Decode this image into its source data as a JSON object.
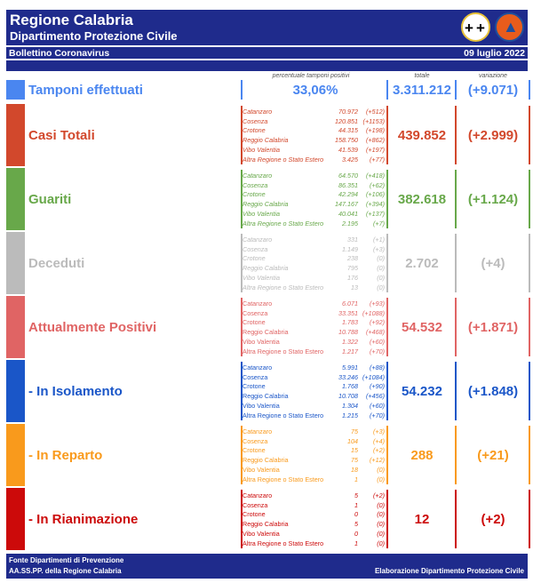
{
  "header": {
    "title": "Regione Calabria",
    "subtitle": "Dipartimento Protezione Civile",
    "bulletin": "Bollettino Coronavirus",
    "date": "09 luglio 2022"
  },
  "columns": {
    "perc": "percentuale tamponi positivi",
    "totale": "totale",
    "variazione": "variazione"
  },
  "tamponi": {
    "label": "Tamponi effettuati",
    "perc": "33,06%",
    "totale": "3.311.212",
    "variazione": "(+9.071)",
    "color": "#4a86f0"
  },
  "sections": [
    {
      "label": "Casi Totali",
      "color": "#d2482c",
      "italic": true,
      "totale": "439.852",
      "variazione": "(+2.999)",
      "rows": [
        [
          "Catanzaro",
          "70.972",
          "(+512)"
        ],
        [
          "Cosenza",
          "120.851",
          "(+1153)"
        ],
        [
          "Crotone",
          "44.315",
          "(+198)"
        ],
        [
          "Reggio Calabria",
          "158.750",
          "(+862)"
        ],
        [
          "Vibo Valentia",
          "41.539",
          "(+197)"
        ],
        [
          "Altra Regione o Stato Estero",
          "3.425",
          "(+77)"
        ]
      ]
    },
    {
      "label": "Guariti",
      "color": "#68a84a",
      "italic": true,
      "totale": "382.618",
      "variazione": "(+1.124)",
      "rows": [
        [
          "Catanzaro",
          "64.570",
          "(+418)"
        ],
        [
          "Cosenza",
          "86.351",
          "(+62)"
        ],
        [
          "Crotone",
          "42.294",
          "(+106)"
        ],
        [
          "Reggio Calabria",
          "147.167",
          "(+394)"
        ],
        [
          "Vibo Valentia",
          "40.041",
          "(+137)"
        ],
        [
          "Altra Regione o Stato Estero",
          "2.195",
          "(+7)"
        ]
      ]
    },
    {
      "label": "Deceduti",
      "color": "#bbbbbb",
      "italic": true,
      "totale": "2.702",
      "variazione": "(+4)",
      "rows": [
        [
          "Catanzaro",
          "331",
          "(+1)"
        ],
        [
          "Cosenza",
          "1.149",
          "(+3)"
        ],
        [
          "Crotone",
          "238",
          "(0)"
        ],
        [
          "Reggio Calabria",
          "795",
          "(0)"
        ],
        [
          "Vibo Valentia",
          "176",
          "(0)"
        ],
        [
          "Altra Regione o Stato Estero",
          "13",
          "(0)"
        ]
      ]
    },
    {
      "label": "Attualmente Positivi",
      "color": "#e06464",
      "italic": false,
      "totale": "54.532",
      "variazione": "(+1.871)",
      "rows": [
        [
          "Catanzaro",
          "6.071",
          "(+93)"
        ],
        [
          "Cosenza",
          "33.351",
          "(+1088)"
        ],
        [
          "Crotone",
          "1.783",
          "(+92)"
        ],
        [
          "Reggio Calabria",
          "10.788",
          "(+468)"
        ],
        [
          "Vibo Valentia",
          "1.322",
          "(+60)"
        ],
        [
          "Altra Regione o Stato Estero",
          "1.217",
          "(+70)"
        ]
      ]
    },
    {
      "label": "- In Isolamento",
      "color": "#1a56c8",
      "italic": false,
      "totale": "54.232",
      "variazione": "(+1.848)",
      "rows": [
        [
          "Catanzaro",
          "5.991",
          "(+88)"
        ],
        [
          "Cosenza",
          "33.246",
          "(+1084)"
        ],
        [
          "Crotone",
          "1.768",
          "(+90)"
        ],
        [
          "Reggio Calabria",
          "10.708",
          "(+456)"
        ],
        [
          "Vibo Valentia",
          "1.304",
          "(+60)"
        ],
        [
          "Altra Regione o Stato Estero",
          "1.215",
          "(+70)"
        ]
      ]
    },
    {
      "label": "- In Reparto",
      "color": "#f99a1c",
      "italic": false,
      "totale": "288",
      "variazione": "(+21)",
      "rows": [
        [
          "Catanzaro",
          "75",
          "(+3)"
        ],
        [
          "Cosenza",
          "104",
          "(+4)"
        ],
        [
          "Crotone",
          "15",
          "(+2)"
        ],
        [
          "Reggio Calabria",
          "75",
          "(+12)"
        ],
        [
          "Vibo Valentia",
          "18",
          "(0)"
        ],
        [
          "Altra Regione o Stato Estero",
          "1",
          "(0)"
        ]
      ]
    },
    {
      "label": "- In Rianimazione",
      "color": "#cc0a0a",
      "italic": false,
      "totale": "12",
      "variazione": "(+2)",
      "rows": [
        [
          "Catanzaro",
          "5",
          "(+2)"
        ],
        [
          "Cosenza",
          "1",
          "(0)"
        ],
        [
          "Crotone",
          "0",
          "(0)"
        ],
        [
          "Reggio Calabria",
          "5",
          "(0)"
        ],
        [
          "Vibo Valentia",
          "0",
          "(0)"
        ],
        [
          "Altra Regione o Stato Estero",
          "1",
          "(0)"
        ]
      ]
    }
  ],
  "footer": {
    "line1": "Fonte Dipartimenti di Prevenzione",
    "line2": "AA.SS.PP.  della Regione Calabria",
    "right": "Elaborazione Dipartimento Protezione Civile"
  }
}
